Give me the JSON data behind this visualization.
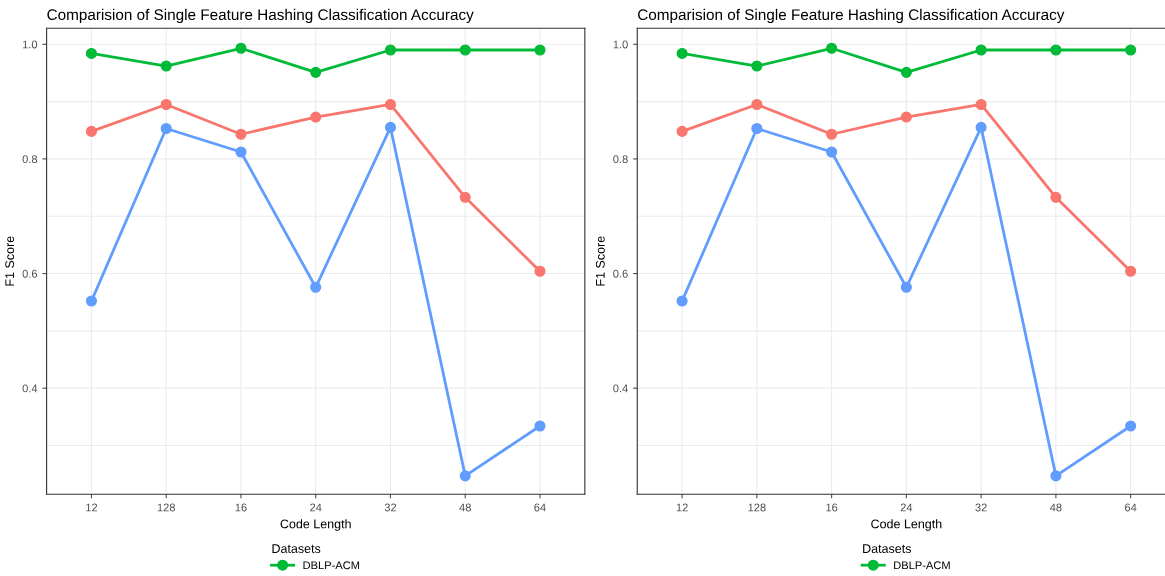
{
  "chart_data": [
    {
      "type": "line",
      "title": "Comparision of Single Feature Hashing Classification Accuracy",
      "xlabel": "Code Length",
      "ylabel": "F1 Score",
      "legend_title": "Datasets",
      "categories": [
        "12",
        "128",
        "16",
        "24",
        "32",
        "48",
        "64"
      ],
      "series": [
        {
          "color": "#f8766d",
          "values": [
            0.848,
            0.895,
            0.843,
            0.873,
            0.895,
            0.733,
            0.604
          ]
        },
        {
          "name": "DBLP-ACM",
          "color": "#00ba38",
          "values": [
            0.984,
            0.962,
            0.993,
            0.951,
            0.99,
            0.99,
            0.99
          ]
        },
        {
          "color": "#619cff",
          "values": [
            0.552,
            0.853,
            0.812,
            0.576,
            0.855,
            0.247,
            0.334
          ]
        }
      ],
      "ylim": [
        0.215,
        1.028
      ],
      "yticks": [
        0.4,
        0.6,
        0.8,
        {
          "value": 1.0,
          "label": "1.0"
        }
      ],
      "grid": true,
      "legend": "bottom",
      "marker": "circle"
    },
    {
      "type": "line",
      "title": "Comparision of Single Feature Hashing Classification Accuracy",
      "xlabel": "Code Length",
      "ylabel": "F1 Score",
      "legend_title": "Datasets",
      "categories": [
        "12",
        "128",
        "16",
        "24",
        "32",
        "48",
        "64"
      ],
      "series": [
        {
          "color": "#f8766d",
          "values": [
            0.848,
            0.895,
            0.843,
            0.873,
            0.895,
            0.733,
            0.604
          ]
        },
        {
          "name": "DBLP-ACM",
          "color": "#00ba38",
          "values": [
            0.984,
            0.962,
            0.993,
            0.951,
            0.99,
            0.99,
            0.99
          ]
        },
        {
          "color": "#619cff",
          "values": [
            0.552,
            0.853,
            0.812,
            0.576,
            0.855,
            0.247,
            0.334
          ]
        }
      ],
      "ylim": [
        0.215,
        1.028
      ],
      "yticks": [
        0.4,
        0.6,
        0.8,
        {
          "value": 1.0,
          "label": "1.0"
        }
      ],
      "grid": true,
      "legend": "bottom",
      "marker": "circle"
    }
  ]
}
